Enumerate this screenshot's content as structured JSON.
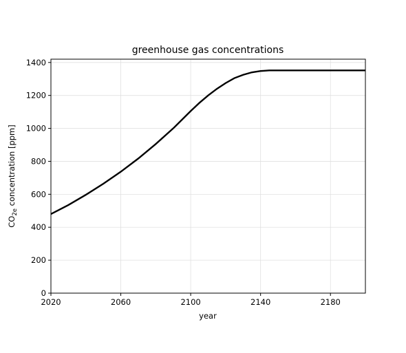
{
  "chart_data": {
    "type": "line",
    "title": "greenhouse gas concentrations",
    "xlabel": "year",
    "ylabel": "CO2e concentration [ppm]",
    "ylabel_parts": {
      "pre": "CO",
      "sub": "2e",
      "post": " concentration [ppm]"
    },
    "xlim": [
      2020,
      2200
    ],
    "ylim": [
      0,
      1420
    ],
    "xticks": [
      2020,
      2060,
      2100,
      2140,
      2180
    ],
    "yticks": [
      0,
      200,
      400,
      600,
      800,
      1000,
      1200,
      1400
    ],
    "grid": true,
    "line_color": "#000000",
    "series": [
      {
        "x": [
          2020,
          2030,
          2040,
          2050,
          2060,
          2070,
          2080,
          2090,
          2100,
          2105,
          2110,
          2115,
          2120,
          2125,
          2130,
          2135,
          2140,
          2145,
          2150,
          2160,
          2170,
          2180,
          2190,
          2200
        ],
        "y": [
          480,
          535,
          597,
          664,
          737,
          817,
          905,
          1000,
          1105,
          1155,
          1200,
          1240,
          1275,
          1305,
          1325,
          1340,
          1348,
          1352,
          1352,
          1352,
          1352,
          1352,
          1352,
          1352
        ]
      }
    ]
  }
}
